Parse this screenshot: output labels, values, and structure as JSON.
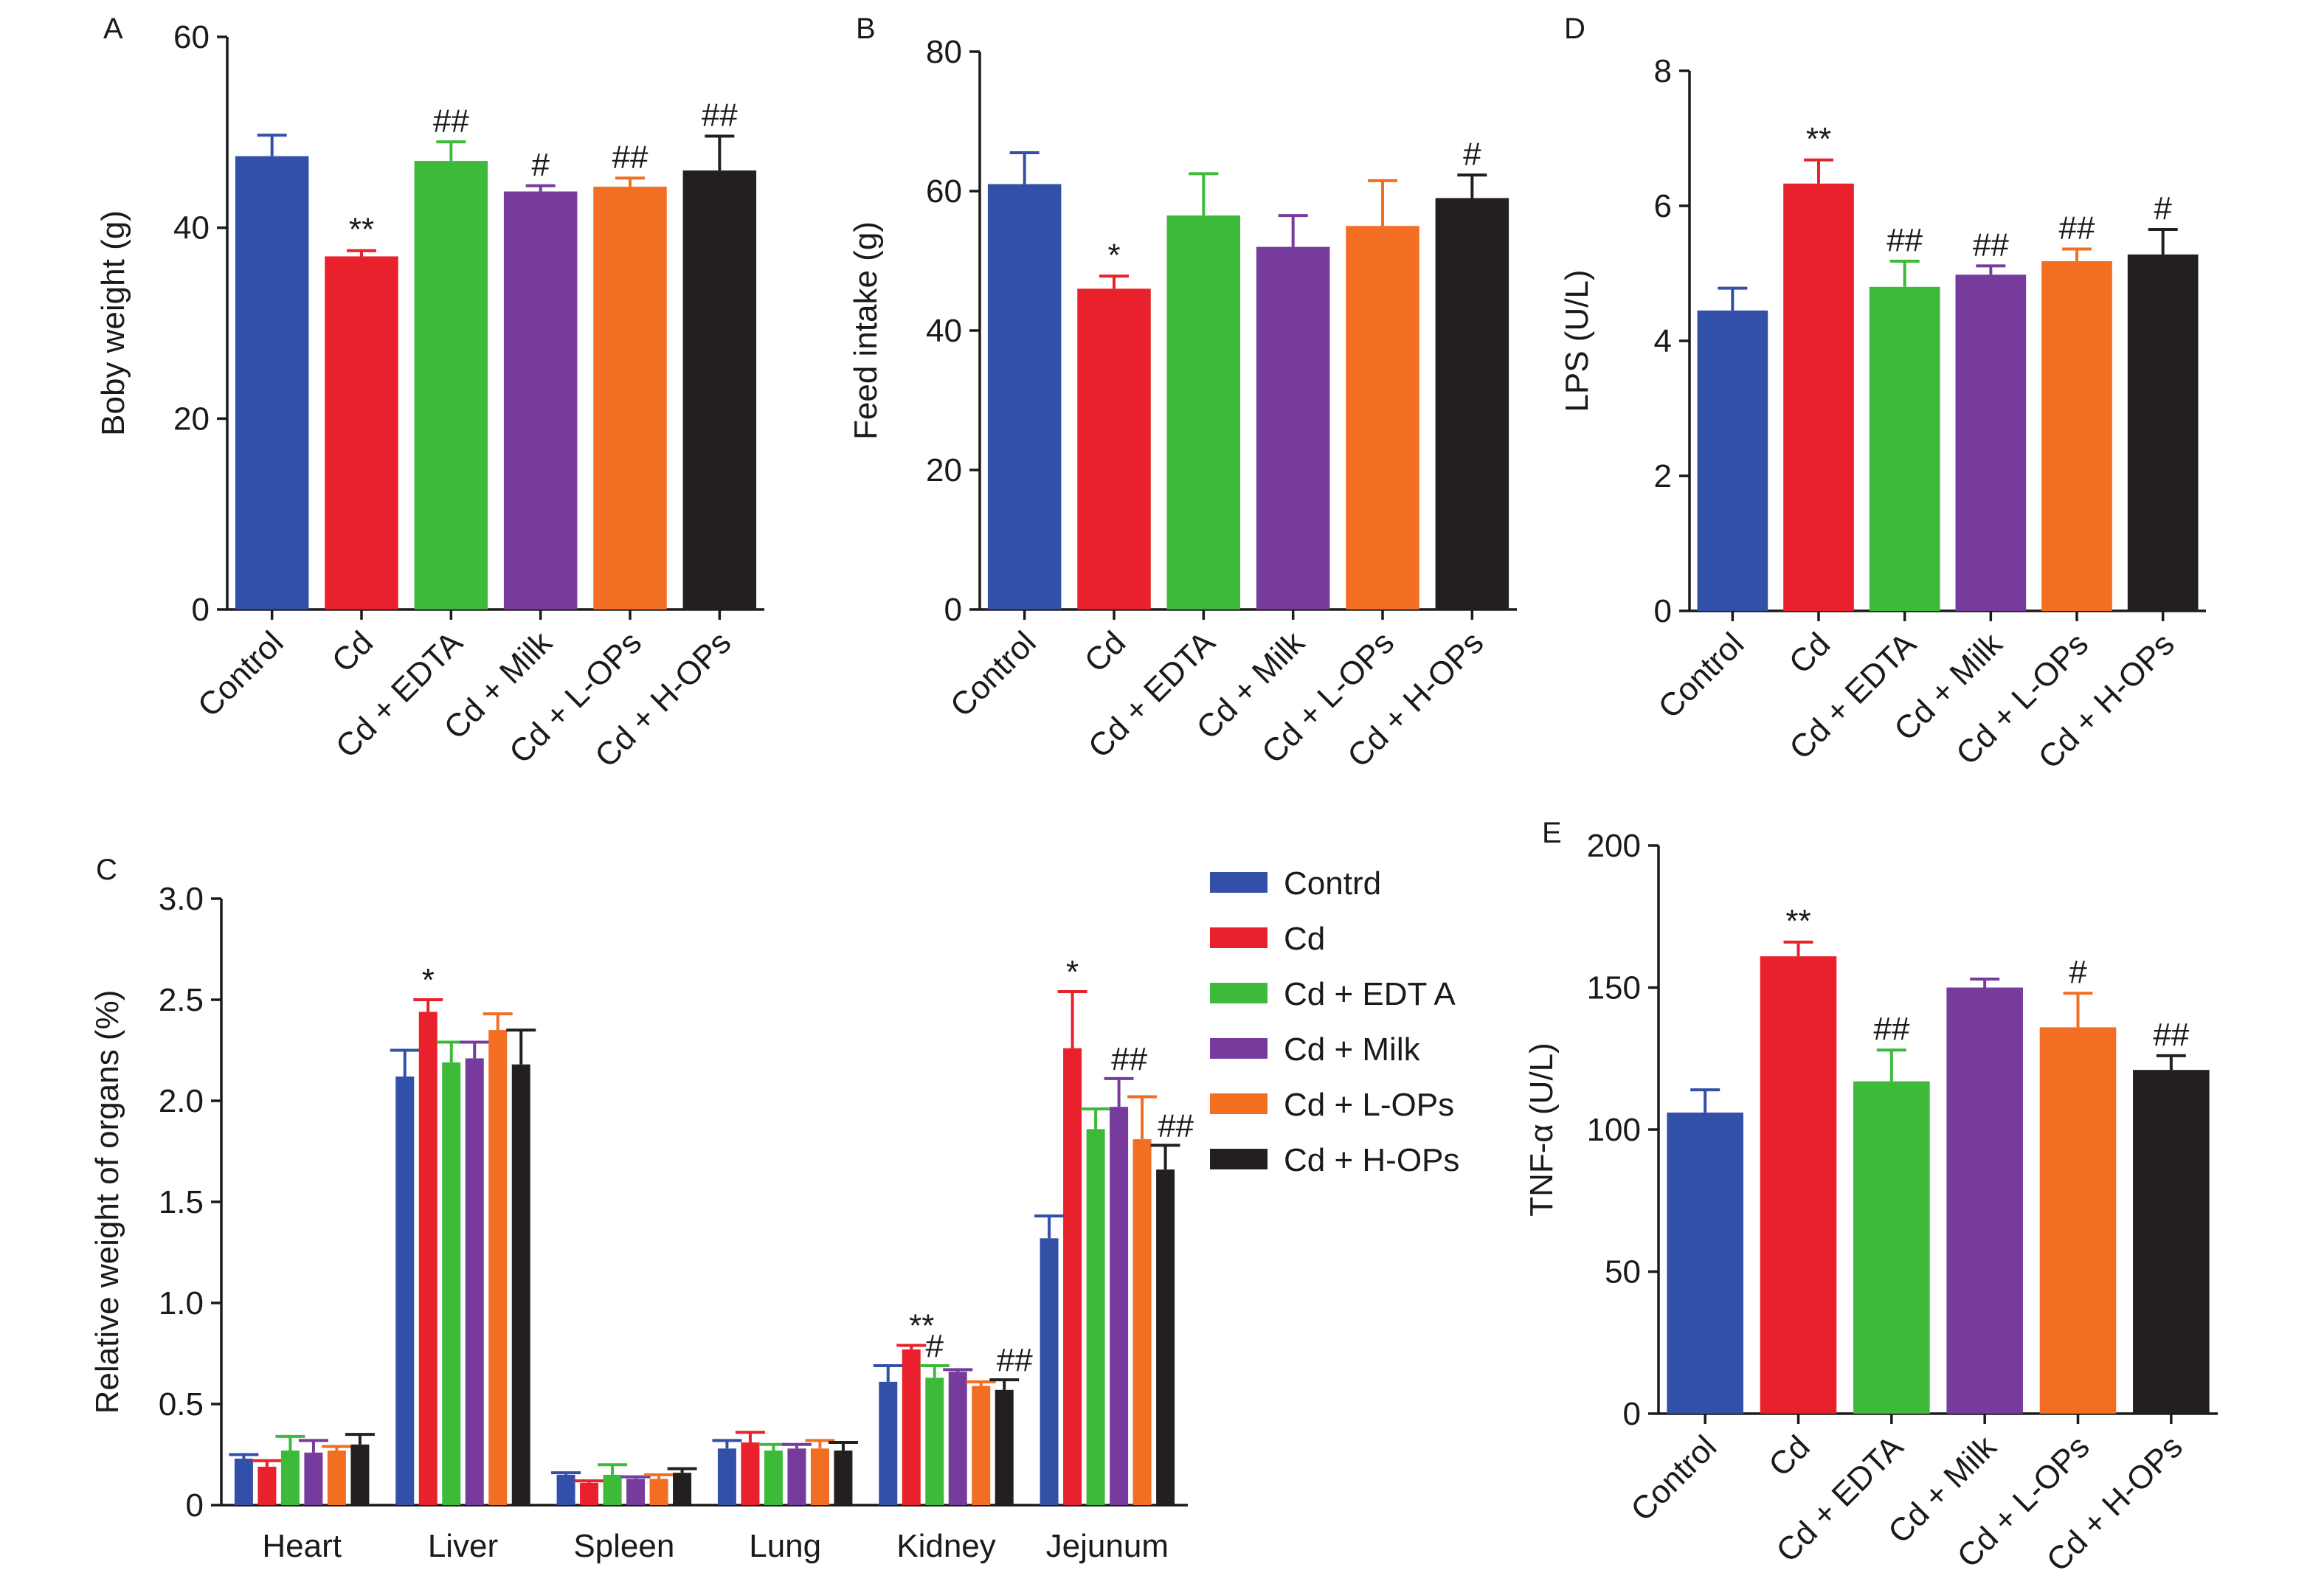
{
  "chart_data": [
    {
      "panel": "A",
      "type": "bar",
      "categories": [
        "Control",
        "Cd",
        "Cd + EDTA",
        "Cd + Milk",
        "Cd + L-OPs",
        "Cd + H-OPs"
      ],
      "values": [
        47.5,
        37.0,
        47.0,
        43.8,
        44.3,
        46.0
      ],
      "errors": [
        2.2,
        0.6,
        2.0,
        0.6,
        0.9,
        3.6
      ],
      "significance": [
        "",
        "**",
        "##",
        "#",
        "##",
        "##"
      ],
      "colors": [
        "#3350a8",
        "#e8212c",
        "#3dba3a",
        "#763b9c",
        "#f26e22",
        "#231f20"
      ],
      "ylabel": "Boby weight (g)",
      "ylim": [
        0,
        60
      ],
      "yticks": [
        0,
        20,
        40,
        60
      ]
    },
    {
      "panel": "B",
      "type": "bar",
      "categories": [
        "Control",
        "Cd",
        "Cd + EDTA",
        "Cd + Milk",
        "Cd + L-OPs",
        "Cd + H-OPs"
      ],
      "values": [
        61.0,
        46.0,
        56.5,
        52.0,
        55.0,
        59.0
      ],
      "errors": [
        4.5,
        1.8,
        6.0,
        4.5,
        6.5,
        3.3
      ],
      "significance": [
        "",
        "*",
        "",
        "",
        "",
        "#"
      ],
      "colors": [
        "#3350a8",
        "#e8212c",
        "#3dba3a",
        "#763b9c",
        "#f26e22",
        "#231f20"
      ],
      "ylabel": "Feed intake (g)",
      "ylim": [
        0,
        80
      ],
      "yticks": [
        0,
        20,
        40,
        60,
        80
      ]
    },
    {
      "panel": "D",
      "type": "bar",
      "categories": [
        "Control",
        "Cd",
        "Cd + EDTA",
        "Cd + Milk",
        "Cd + L-OPs",
        "Cd + H-OPs"
      ],
      "values": [
        4.45,
        6.33,
        4.8,
        4.98,
        5.18,
        5.28
      ],
      "errors": [
        0.33,
        0.35,
        0.38,
        0.13,
        0.18,
        0.37
      ],
      "significance": [
        "",
        "**",
        "##",
        "##",
        "##",
        "#"
      ],
      "colors": [
        "#3350a8",
        "#e8212c",
        "#3dba3a",
        "#763b9c",
        "#f26e22",
        "#231f20"
      ],
      "ylabel": "LPS (U/L)",
      "ylim": [
        0,
        8
      ],
      "yticks": [
        0,
        2,
        4,
        6,
        8
      ]
    },
    {
      "panel": "C",
      "type": "bar",
      "categories": [
        "Heart",
        "Liver",
        "Spleen",
        "Lung",
        "Kidney",
        "Jejunum"
      ],
      "series": [
        {
          "name": "Contrd",
          "color": "#3350a8",
          "values": [
            0.23,
            2.12,
            0.15,
            0.28,
            0.61,
            1.32
          ],
          "errors": [
            0.02,
            0.13,
            0.01,
            0.04,
            0.08,
            0.11
          ]
        },
        {
          "name": "Cd",
          "color": "#e8212c",
          "values": [
            0.19,
            2.44,
            0.11,
            0.31,
            0.77,
            2.26
          ],
          "errors": [
            0.03,
            0.06,
            0.01,
            0.05,
            0.02,
            0.28
          ]
        },
        {
          "name": "Cd + EDT A",
          "color": "#3dba3a",
          "values": [
            0.27,
            2.19,
            0.15,
            0.27,
            0.63,
            1.86
          ],
          "errors": [
            0.07,
            0.1,
            0.05,
            0.03,
            0.06,
            0.1
          ]
        },
        {
          "name": "Cd + Milk",
          "color": "#763b9c",
          "values": [
            0.26,
            2.21,
            0.13,
            0.28,
            0.66,
            1.97
          ],
          "errors": [
            0.06,
            0.08,
            0.01,
            0.02,
            0.01,
            0.14
          ]
        },
        {
          "name": "Cd + L-OPs",
          "color": "#f26e22",
          "values": [
            0.27,
            2.35,
            0.13,
            0.28,
            0.59,
            1.81
          ],
          "errors": [
            0.02,
            0.08,
            0.02,
            0.04,
            0.02,
            0.21
          ]
        },
        {
          "name": "Cd + H-OPs",
          "color": "#231f20",
          "values": [
            0.3,
            2.18,
            0.16,
            0.27,
            0.57,
            1.66
          ],
          "errors": [
            0.05,
            0.17,
            0.02,
            0.04,
            0.05,
            0.12
          ]
        }
      ],
      "significance": [
        {
          "category": "Liver",
          "series": "Cd",
          "label": "*"
        },
        {
          "category": "Kidney",
          "series": "Cd",
          "label": "**"
        },
        {
          "category": "Kidney",
          "series": "Cd + EDT A",
          "label": "#"
        },
        {
          "category": "Kidney",
          "series": "Cd + H-OPs",
          "label": "##"
        },
        {
          "category": "Jejunum",
          "series": "Cd",
          "label": "*"
        },
        {
          "category": "Jejunum",
          "series": "Cd + Milk",
          "label": "##"
        },
        {
          "category": "Jejunum",
          "series": "Cd + H-OPs",
          "label": "##"
        }
      ],
      "ylabel": "Relative weight of organs (%)",
      "ylim": [
        0,
        3.0
      ],
      "yticks": [
        "0",
        "0.5",
        "1.0",
        "1.5",
        "2.0",
        "2.5",
        "3.0"
      ],
      "legend": "right"
    },
    {
      "panel": "E",
      "type": "bar",
      "categories": [
        "Control",
        "Cd",
        "Cd + EDTA",
        "Cd + Milk",
        "Cd + L-OPs",
        "Cd + H-OPs"
      ],
      "values": [
        106,
        161,
        117,
        150,
        136,
        121
      ],
      "errors": [
        8,
        5,
        11,
        3,
        12,
        5
      ],
      "significance": [
        "",
        "**",
        "##",
        "",
        "#",
        "##"
      ],
      "colors": [
        "#3350a8",
        "#e8212c",
        "#3dba3a",
        "#763b9c",
        "#f26e22",
        "#231f20"
      ],
      "ylabel": "TNF-α (U/L)",
      "ylim": [
        0,
        200
      ],
      "yticks": [
        0,
        50,
        100,
        150,
        200
      ]
    }
  ]
}
